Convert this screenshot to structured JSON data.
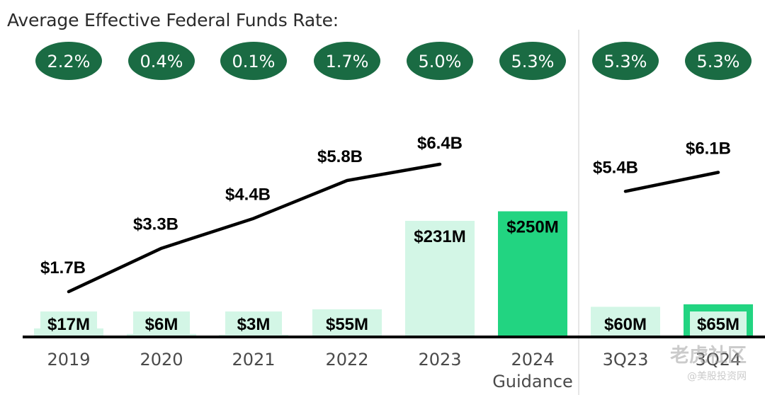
{
  "chart_data": {
    "type": "bar+line",
    "title": "Average Effective Federal Funds Rate:",
    "categories": [
      "2019",
      "2020",
      "2021",
      "2022",
      "2023",
      "2024\nGuidance",
      "3Q23",
      "3Q24"
    ],
    "rates": [
      "2.2%",
      "0.4%",
      "0.1%",
      "1.7%",
      "5.0%",
      "5.3%",
      "5.3%",
      "5.3%"
    ],
    "bar_series": {
      "values": [
        17,
        6,
        3,
        55,
        231,
        250,
        60,
        65
      ],
      "labels": [
        "$17M",
        "$6M",
        "$3M",
        "$55M",
        "$231M",
        "$250M",
        "$60M",
        "$65M"
      ],
      "highlight": [
        false,
        false,
        false,
        false,
        false,
        true,
        false,
        true
      ]
    },
    "line_series": [
      {
        "points": [
          {
            "x": "2019",
            "y": 1.7
          },
          {
            "x": "2020",
            "y": 3.3
          },
          {
            "x": "2021",
            "y": 4.4
          },
          {
            "x": "2022",
            "y": 5.8
          },
          {
            "x": "2023",
            "y": 6.4
          }
        ],
        "labels": [
          "$1.7B",
          "$3.3B",
          "$4.4B",
          "$5.8B",
          "$6.4B"
        ]
      },
      {
        "points": [
          {
            "x": "3Q23",
            "y": 5.4
          },
          {
            "x": "3Q24",
            "y": 6.1
          }
        ],
        "labels": [
          "$5.4B",
          "$6.1B"
        ]
      }
    ],
    "colors": {
      "rate_bubble": "#1a6b43",
      "bar_light": "#d3f6e6",
      "bar_highlight": "#22d481",
      "line": "#000000",
      "axis": "#000000",
      "divider": "#cccccc"
    }
  },
  "watermark": {
    "main": "老虎社区",
    "sub": "@美股投资网"
  }
}
